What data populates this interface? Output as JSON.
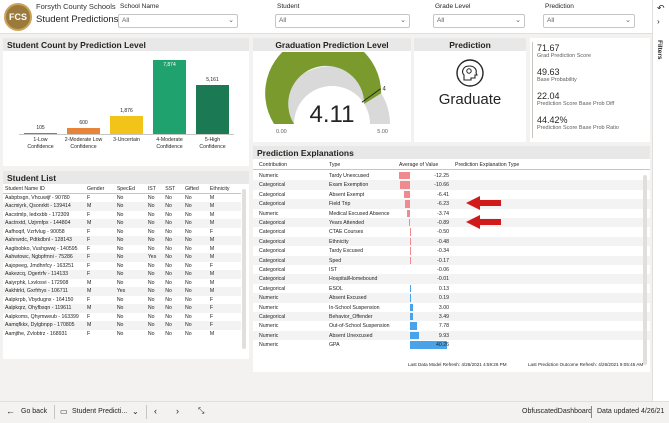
{
  "header": {
    "org": "Forsyth County Schools",
    "report_title": "Student Predictions",
    "logo_text": "FCS",
    "filters": [
      {
        "label": "School Name",
        "value": "All"
      },
      {
        "label": "Student",
        "value": "All"
      },
      {
        "label": "Grade Level",
        "value": "All"
      },
      {
        "label": "Prediction",
        "value": "All"
      }
    ]
  },
  "rail": {
    "filters_label": "Filters"
  },
  "count_chart": {
    "title": "Student Count by Prediction Level",
    "chart_data": {
      "type": "bar",
      "categories": [
        "1-Low Confidence",
        "2-Moderate Low Confidence",
        "3-Uncertain",
        "4-Moderate Confidence",
        "5-High Confidence"
      ],
      "values": [
        105,
        600,
        1876,
        7874,
        5161
      ],
      "value_labels": [
        "105",
        "600",
        "1,876",
        "7,874",
        "5,161"
      ],
      "colors": [
        "#e8534f",
        "#e8833a",
        "#f2c319",
        "#20a26e",
        "#1b7a53"
      ],
      "ylim": [
        0,
        7874
      ]
    }
  },
  "gauge": {
    "title": "Graduation Prediction Level",
    "value": "4.11",
    "value_num": 4.11,
    "min": 0,
    "max": 5,
    "target": 4,
    "min_label": "0.00",
    "max_label": "5.00",
    "target_label": "4"
  },
  "prediction": {
    "title": "Prediction",
    "value": "Graduate",
    "icon": "brain-gear-icon"
  },
  "kpis": [
    {
      "value": "71.67",
      "label": "Grad Prediction Score"
    },
    {
      "value": "49.63",
      "label": "Base Probability"
    },
    {
      "value": "22.04",
      "label": "Prediction Score Base Prob Diff"
    },
    {
      "value": "44.42%",
      "label": "Prediction Score Base Prob Ratio"
    }
  ],
  "students": {
    "title": "Student List",
    "columns": [
      "Student Name ID",
      "Gender",
      "SpecEd",
      "IST",
      "SST",
      "Gifted",
      "Ethnicity"
    ],
    "rows": [
      [
        "Aabpbsgn, Vhcuwijf - 90780",
        "F",
        "No",
        "No",
        "No",
        "No",
        "M"
      ],
      [
        "Aacmiyrk, Qsonrktt - 139414",
        "M",
        "No",
        "No",
        "No",
        "No",
        "M"
      ],
      [
        "Aacstmlp, Iedxxbb - 172309",
        "F",
        "No",
        "No",
        "No",
        "No",
        "M"
      ],
      [
        "Aactnxtd, Uzjrmfpx - 144804",
        "M",
        "No",
        "No",
        "No",
        "No",
        "M"
      ],
      [
        "Aafhoqif, Vzrfvlug - 90058",
        "F",
        "No",
        "No",
        "No",
        "No",
        "F"
      ],
      [
        "Aahrwrdc, Pdtkdbnl - 128143",
        "F",
        "No",
        "No",
        "No",
        "No",
        "M"
      ],
      [
        "Aagibobko, Vushgwwj - 140595",
        "F",
        "No",
        "No",
        "No",
        "No",
        "M"
      ],
      [
        "Aahwtowc, Ngbpfmni - 75286",
        "F",
        "No",
        "Yes",
        "No",
        "No",
        "M"
      ],
      [
        "Aajopeeg, Jmdhnfcy - 163251",
        "F",
        "No",
        "No",
        "No",
        "No",
        "F"
      ],
      [
        "Aakezcq, Ogertrfv - 114133",
        "F",
        "No",
        "No",
        "No",
        "No",
        "M"
      ],
      [
        "Aaiyrphk, Lxvlosvi - 172908",
        "M",
        "No",
        "No",
        "No",
        "No",
        "M"
      ],
      [
        "Aakhtrkt, Gxrfrhys - 106711",
        "M",
        "Yes",
        "No",
        "No",
        "No",
        "M"
      ],
      [
        "Aalpkrpb, Vbydugnx - 164150",
        "F",
        "No",
        "No",
        "No",
        "No",
        "F"
      ],
      [
        "Aalpkqrz, Ohyfbsqn - 119611",
        "M",
        "No",
        "No",
        "No",
        "No",
        "F"
      ],
      [
        "Aalpkoms, Qhymweub - 163399",
        "F",
        "No",
        "No",
        "No",
        "No",
        "F"
      ],
      [
        "Aamqfkkx, Dylgbnpp - 170805",
        "M",
        "No",
        "No",
        "No",
        "No",
        "F"
      ],
      [
        "Aamjthe, Zvlobtrz - 168931",
        "F",
        "No",
        "No",
        "No",
        "No",
        "M"
      ]
    ]
  },
  "explanations": {
    "title": "Prediction Explanations",
    "columns": [
      "Contribution",
      "Type",
      "Average of Value",
      "Prediction Explanation Type"
    ],
    "rows": [
      {
        "contribution": "Numeric",
        "type": "Tardy Unexcused",
        "value": -12.25,
        "label": "-12.25"
      },
      {
        "contribution": "Categorical",
        "type": "Exam Exemption",
        "value": -10.66,
        "label": "-10.66"
      },
      {
        "contribution": "Categorical",
        "type": "Absent Exempt",
        "value": -6.41,
        "label": "-6.41"
      },
      {
        "contribution": "Categorical",
        "type": "Field Trip",
        "value": -6.23,
        "label": "-6.23",
        "arrow": true
      },
      {
        "contribution": "Numeric",
        "type": "Medical Excused Absence",
        "value": -3.74,
        "label": "-3.74"
      },
      {
        "contribution": "Categorical",
        "type": "Years Attended",
        "value": -0.89,
        "label": "-0.89",
        "arrow": true
      },
      {
        "contribution": "Categorical",
        "type": "CTAE Courses",
        "value": -0.5,
        "label": "-0.50"
      },
      {
        "contribution": "Categorical",
        "type": "Ethnicity",
        "value": -0.48,
        "label": "-0.48"
      },
      {
        "contribution": "Categorical",
        "type": "Tardy Excused",
        "value": -0.34,
        "label": "-0.34"
      },
      {
        "contribution": "Categorical",
        "type": "Sped",
        "value": -0.17,
        "label": "-0.17"
      },
      {
        "contribution": "Categorical",
        "type": "IST",
        "value": -0.06,
        "label": "-0.06"
      },
      {
        "contribution": "Categorical",
        "type": "Hospital/Homebound",
        "value": -0.01,
        "label": "-0.01"
      },
      {
        "contribution": "Categorical",
        "type": "ESOL",
        "value": 0.13,
        "label": "0.13"
      },
      {
        "contribution": "Numeric",
        "type": "Absent Excused",
        "value": 0.19,
        "label": "0.19"
      },
      {
        "contribution": "Numeric",
        "type": "In-School Suspension",
        "value": 3.0,
        "label": "3.00"
      },
      {
        "contribution": "Categorical",
        "type": "Behavior_Offender",
        "value": 3.49,
        "label": "3.49"
      },
      {
        "contribution": "Numeric",
        "type": "Out-of-School Suspension",
        "value": 7.78,
        "label": "7.78"
      },
      {
        "contribution": "Numeric",
        "type": "Absent Unexcused",
        "value": 9.93,
        "label": "9.93"
      },
      {
        "contribution": "Numeric",
        "type": "GPA",
        "value": 40.26,
        "label": "40.26"
      }
    ],
    "refresh_left": "Last Data Model Refresh: 4/26/2021 4:59:26 PM",
    "refresh_right": "Last Prediction Outcome Refresh: 4/26/2021 9:05:45 AM"
  },
  "footer": {
    "go_back": "Go back",
    "page": "Student Predicti...",
    "workspace": "ObfuscatedDashboard",
    "updated": "Data updated 4/26/21"
  }
}
